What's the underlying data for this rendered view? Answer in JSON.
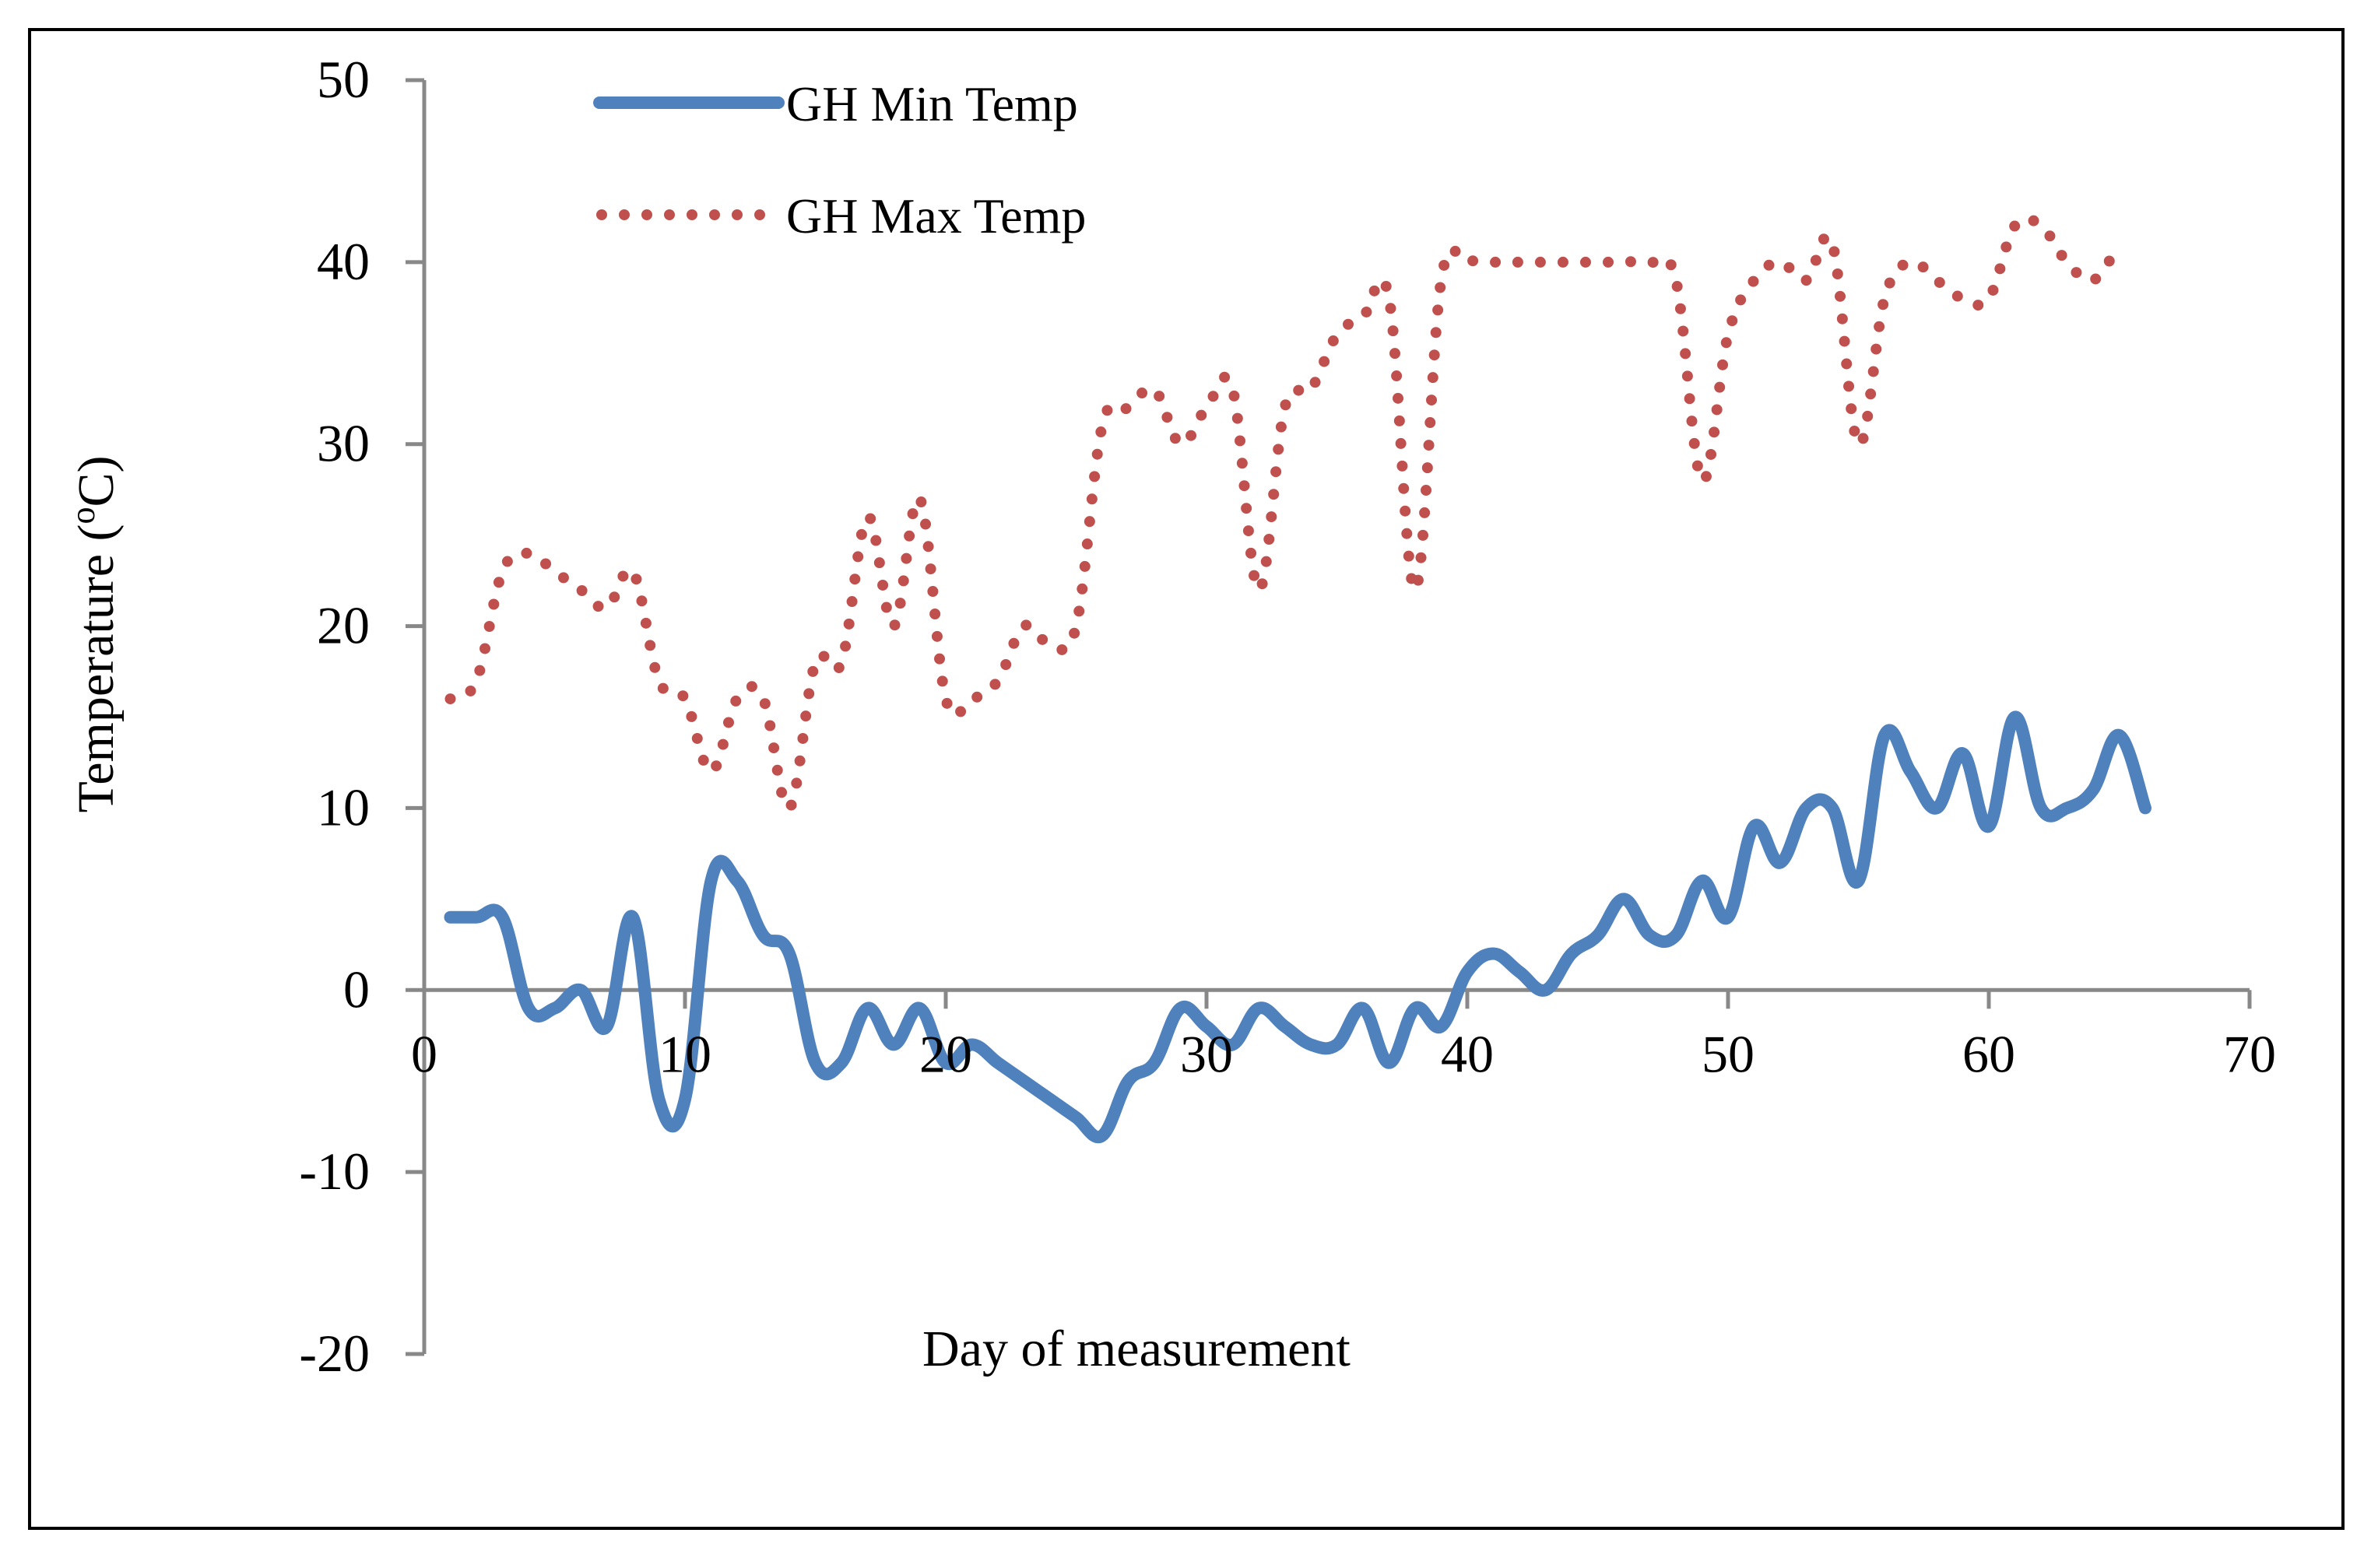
{
  "chart_data": {
    "type": "line",
    "title": "",
    "xlabel": "Day of measurement",
    "ylabel": "Temperature (oC)",
    "ylabel_main": "Temperature (",
    "ylabel_sup": "o",
    "ylabel_end": "C)",
    "xlim": [
      0,
      70
    ],
    "ylim": [
      -20,
      50
    ],
    "x_ticks": [
      0,
      10,
      20,
      30,
      40,
      50,
      60,
      70
    ],
    "y_ticks": [
      -20,
      -10,
      0,
      10,
      20,
      30,
      40,
      50
    ],
    "x_tick_labels": [
      "0",
      "10",
      "20",
      "30",
      "40",
      "50",
      "60",
      "70"
    ],
    "y_tick_labels": [
      "-20",
      "-10",
      "0",
      "10",
      "20",
      "30",
      "40",
      "50"
    ],
    "grid": false,
    "legend_position": "top-left",
    "series": [
      {
        "name": "GH Min Temp",
        "style": "solid",
        "color": "#4F81BD",
        "x": [
          1,
          2,
          3,
          4,
          5,
          6,
          7,
          8,
          9,
          10,
          11,
          12,
          13,
          14,
          15,
          16,
          17,
          18,
          19,
          20,
          21,
          22,
          23,
          24,
          25,
          26,
          27,
          28,
          29,
          30,
          31,
          32,
          33,
          34,
          35,
          36,
          37,
          38,
          39,
          40,
          41,
          42,
          43,
          44,
          45,
          46,
          47,
          48,
          49,
          50,
          51,
          52,
          53,
          54,
          55,
          56,
          57,
          58,
          59,
          60,
          61,
          62,
          63,
          64,
          65,
          66
        ],
        "values": [
          4,
          4,
          4,
          -1,
          -1,
          0,
          -2,
          4,
          -6,
          -6,
          6,
          6,
          3,
          2,
          -4,
          -4,
          -1,
          -3,
          -1,
          -4,
          -3,
          -4,
          -5,
          -6,
          -7,
          -8,
          -5,
          -4,
          -1,
          -2,
          -3,
          -1,
          -2,
          -3,
          -3,
          -1,
          -4,
          -1,
          -2,
          1,
          2,
          1,
          0,
          2,
          3,
          5,
          3,
          3,
          6,
          4,
          9,
          7,
          10,
          10,
          6,
          14,
          12,
          10,
          13,
          9,
          15,
          10,
          10,
          11,
          14,
          10
        ]
      },
      {
        "name": "GH Max Temp",
        "style": "dotted",
        "color": "#C0504D",
        "x": [
          1,
          2,
          3,
          4,
          5,
          6,
          7,
          8,
          9,
          10,
          11,
          12,
          13,
          14,
          15,
          16,
          17,
          18,
          19,
          20,
          21,
          22,
          23,
          24,
          25,
          26,
          27,
          28,
          29,
          30,
          31,
          32,
          33,
          34,
          35,
          36,
          37,
          38,
          39,
          40,
          41,
          42,
          43,
          44,
          45,
          46,
          47,
          48,
          49,
          50,
          51,
          52,
          53,
          54,
          55,
          56,
          57,
          58,
          59,
          60,
          61,
          62,
          63,
          64,
          65
        ],
        "values": [
          16,
          17,
          23,
          24,
          23,
          22,
          21,
          23,
          17,
          16,
          12,
          16,
          16,
          10,
          18,
          18,
          26,
          20,
          27,
          16,
          16,
          17,
          20,
          19,
          20,
          31,
          32,
          33,
          30,
          32,
          33,
          22,
          32,
          33,
          36,
          37,
          38,
          22,
          39,
          40,
          40,
          40,
          40,
          40,
          40,
          40,
          40,
          39,
          28,
          36,
          39,
          40,
          39,
          41,
          30,
          38,
          40,
          39,
          38,
          38,
          42,
          42,
          40,
          39,
          41
        ]
      }
    ]
  },
  "legend": {
    "min_label": "GH Min Temp",
    "max_label": "GH Max Temp"
  }
}
